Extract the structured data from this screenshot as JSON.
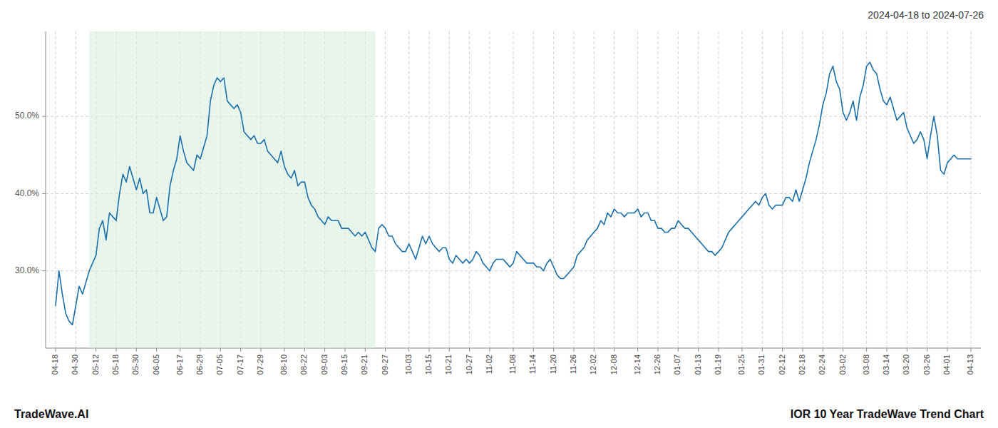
{
  "chart_data": {
    "type": "line",
    "title": "2024-04-18 to 2024-07-26",
    "annotations": [
      "TradeWave.AI",
      "IOR 10 Year TradeWave Trend Chart"
    ],
    "color": "#1a6fad",
    "grid": true,
    "ylim": [
      20,
      61
    ],
    "yticks": [
      {
        "value": 30.0,
        "label": "30.0%"
      },
      {
        "value": 40.0,
        "label": "40.0%"
      },
      {
        "value": 50.0,
        "label": "50.0%"
      }
    ],
    "span": {
      "x": [
        10,
        95
      ],
      "color": "#d4edda"
    },
    "categories": [
      "04-18",
      null,
      null,
      null,
      null,
      null,
      "04-30",
      null,
      null,
      null,
      null,
      null,
      "05-12",
      null,
      null,
      null,
      null,
      null,
      "05-18",
      null,
      null,
      null,
      null,
      null,
      "05-30",
      null,
      null,
      null,
      null,
      null,
      "06-05",
      null,
      null,
      null,
      null,
      null,
      null,
      "06-17",
      null,
      null,
      null,
      null,
      null,
      "06-29",
      null,
      null,
      null,
      null,
      null,
      "07-05",
      null,
      null,
      null,
      null,
      null,
      "07-17",
      null,
      null,
      null,
      null,
      null,
      "07-29",
      null,
      null,
      null,
      null,
      null,
      null,
      "08-10",
      null,
      null,
      null,
      null,
      null,
      "08-22",
      null,
      null,
      null,
      null,
      null,
      "09-03",
      null,
      null,
      null,
      null,
      null,
      "09-15",
      null,
      null,
      null,
      null,
      null,
      "09-21",
      null,
      null,
      null,
      null,
      null,
      "09-27",
      null,
      null,
      null,
      null,
      null,
      null,
      "10-03",
      null,
      null,
      null,
      null,
      null,
      "10-15",
      null,
      null,
      null,
      null,
      null,
      "10-21",
      null,
      null,
      null,
      null,
      null,
      "10-27",
      null,
      null,
      null,
      null,
      null,
      "11-02",
      null,
      null,
      null,
      null,
      null,
      null,
      "11-08",
      null,
      null,
      null,
      null,
      null,
      "11-14",
      null,
      null,
      null,
      null,
      null,
      "11-20",
      null,
      null,
      null,
      null,
      null,
      "11-26",
      null,
      null,
      null,
      null,
      null,
      "12-02",
      null,
      null,
      null,
      null,
      null,
      "12-08",
      null,
      null,
      null,
      null,
      null,
      null,
      "12-14",
      null,
      null,
      null,
      null,
      null,
      "12-26",
      null,
      null,
      null,
      null,
      null,
      "01-07",
      null,
      null,
      null,
      null,
      null,
      "01-13",
      null,
      null,
      null,
      null,
      null,
      "01-19",
      null,
      null,
      null,
      null,
      null,
      null,
      "01-25",
      null,
      null,
      null,
      null,
      null,
      "01-31",
      null,
      null,
      null,
      null,
      null,
      "02-12",
      null,
      null,
      null,
      null,
      null,
      "02-18",
      null,
      null,
      null,
      null,
      null,
      "02-24",
      null,
      null,
      null,
      null,
      null,
      "03-02",
      null,
      null,
      null,
      null,
      null,
      null,
      "03-08",
      null,
      null,
      null,
      null,
      null,
      "03-14",
      null,
      null,
      null,
      null,
      null,
      "03-20",
      null,
      null,
      null,
      null,
      null,
      "03-26",
      null,
      null,
      null,
      null,
      null,
      "04-01",
      null,
      null,
      null,
      null,
      null,
      null,
      "04-13"
    ],
    "values": [
      25.5,
      30.0,
      27.0,
      24.5,
      23.5,
      23.0,
      25.5,
      28.0,
      27.0,
      28.5,
      30.0,
      31.0,
      32.0,
      35.5,
      36.5,
      34.0,
      37.5,
      37.0,
      36.5,
      40.0,
      42.5,
      41.5,
      43.5,
      42.0,
      40.5,
      42.0,
      40.0,
      40.5,
      37.5,
      37.5,
      39.5,
      38.0,
      36.5,
      37.0,
      41.0,
      43.0,
      44.5,
      47.5,
      45.5,
      44.0,
      43.5,
      43.0,
      45.0,
      44.5,
      46.0,
      47.5,
      52.0,
      54.0,
      55.0,
      54.5,
      55.0,
      52.0,
      51.5,
      51.0,
      51.5,
      50.5,
      48.0,
      47.5,
      47.0,
      47.5,
      46.5,
      46.5,
      47.0,
      45.5,
      45.0,
      44.5,
      44.0,
      45.5,
      43.5,
      42.5,
      42.0,
      43.0,
      41.0,
      41.5,
      41.5,
      39.5,
      38.5,
      38.0,
      37.0,
      36.5,
      36.0,
      37.0,
      36.5,
      36.5,
      36.5,
      35.5,
      35.5,
      35.5,
      35.0,
      34.5,
      35.0,
      34.5,
      35.0,
      34.0,
      33.0,
      32.5,
      35.5,
      36.0,
      35.5,
      34.5,
      34.5,
      33.5,
      33.0,
      32.5,
      32.5,
      33.5,
      32.5,
      31.5,
      33.0,
      34.5,
      33.5,
      34.5,
      33.5,
      33.0,
      32.5,
      33.0,
      33.0,
      31.5,
      31.0,
      32.0,
      31.5,
      31.0,
      31.5,
      31.0,
      31.5,
      32.5,
      32.0,
      31.0,
      30.5,
      30.0,
      31.0,
      31.5,
      31.5,
      31.5,
      31.0,
      30.5,
      31.0,
      32.5,
      32.0,
      31.5,
      31.0,
      31.0,
      31.0,
      30.5,
      30.5,
      30.0,
      31.0,
      31.5,
      30.5,
      29.5,
      29.0,
      29.0,
      29.5,
      30.0,
      30.5,
      32.0,
      32.5,
      33.0,
      34.0,
      34.5,
      35.0,
      35.5,
      36.5,
      36.0,
      37.5,
      37.0,
      38.0,
      37.5,
      37.5,
      37.0,
      37.5,
      37.5,
      37.5,
      38.0,
      37.0,
      37.5,
      37.5,
      36.5,
      36.5,
      35.5,
      35.5,
      35.0,
      35.0,
      35.5,
      35.5,
      36.5,
      36.0,
      35.5,
      35.5,
      35.0,
      34.5,
      34.0,
      33.5,
      33.0,
      32.5,
      32.5,
      32.0,
      32.5,
      33.0,
      34.0,
      35.0,
      35.5,
      36.0,
      36.5,
      37.0,
      37.5,
      38.0,
      38.5,
      39.0,
      38.5,
      39.5,
      40.0,
      38.5,
      38.0,
      38.5,
      38.5,
      38.5,
      39.5,
      39.5,
      39.0,
      40.5,
      39.0,
      40.5,
      42.0,
      44.0,
      45.5,
      47.0,
      49.0,
      51.5,
      53.0,
      55.5,
      56.5,
      54.5,
      53.5,
      50.5,
      49.5,
      50.5,
      52.0,
      49.5,
      52.5,
      54.0,
      56.5,
      57.0,
      56.0,
      55.5,
      53.5,
      52.0,
      51.5,
      52.5,
      51.0,
      49.5,
      50.0,
      50.5,
      48.5,
      47.5,
      46.5,
      47.0,
      48.0,
      47.0,
      44.5,
      47.5,
      50.0,
      47.5,
      43.0,
      42.5,
      44.0,
      44.5,
      45.0,
      44.5,
      44.5,
      44.5,
      44.5,
      44.5
    ]
  }
}
